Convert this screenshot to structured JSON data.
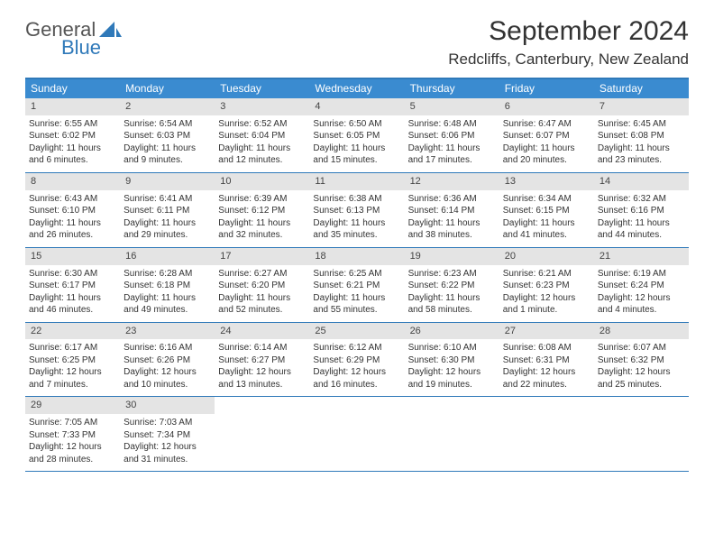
{
  "logo": {
    "text1": "General",
    "text2": "Blue"
  },
  "title": "September 2024",
  "subtitle": "Redcliffs, Canterbury, New Zealand",
  "colors": {
    "header_bg": "#3a8bd0",
    "header_border": "#2f79b9",
    "daynum_bg": "#e4e4e4",
    "text": "#333333",
    "logo_gray": "#555555",
    "logo_blue": "#2f79b9",
    "background": "#ffffff"
  },
  "day_headers": [
    "Sunday",
    "Monday",
    "Tuesday",
    "Wednesday",
    "Thursday",
    "Friday",
    "Saturday"
  ],
  "weeks": [
    [
      {
        "num": "1",
        "sunrise": "Sunrise: 6:55 AM",
        "sunset": "Sunset: 6:02 PM",
        "daylight": "Daylight: 11 hours and 6 minutes."
      },
      {
        "num": "2",
        "sunrise": "Sunrise: 6:54 AM",
        "sunset": "Sunset: 6:03 PM",
        "daylight": "Daylight: 11 hours and 9 minutes."
      },
      {
        "num": "3",
        "sunrise": "Sunrise: 6:52 AM",
        "sunset": "Sunset: 6:04 PM",
        "daylight": "Daylight: 11 hours and 12 minutes."
      },
      {
        "num": "4",
        "sunrise": "Sunrise: 6:50 AM",
        "sunset": "Sunset: 6:05 PM",
        "daylight": "Daylight: 11 hours and 15 minutes."
      },
      {
        "num": "5",
        "sunrise": "Sunrise: 6:48 AM",
        "sunset": "Sunset: 6:06 PM",
        "daylight": "Daylight: 11 hours and 17 minutes."
      },
      {
        "num": "6",
        "sunrise": "Sunrise: 6:47 AM",
        "sunset": "Sunset: 6:07 PM",
        "daylight": "Daylight: 11 hours and 20 minutes."
      },
      {
        "num": "7",
        "sunrise": "Sunrise: 6:45 AM",
        "sunset": "Sunset: 6:08 PM",
        "daylight": "Daylight: 11 hours and 23 minutes."
      }
    ],
    [
      {
        "num": "8",
        "sunrise": "Sunrise: 6:43 AM",
        "sunset": "Sunset: 6:10 PM",
        "daylight": "Daylight: 11 hours and 26 minutes."
      },
      {
        "num": "9",
        "sunrise": "Sunrise: 6:41 AM",
        "sunset": "Sunset: 6:11 PM",
        "daylight": "Daylight: 11 hours and 29 minutes."
      },
      {
        "num": "10",
        "sunrise": "Sunrise: 6:39 AM",
        "sunset": "Sunset: 6:12 PM",
        "daylight": "Daylight: 11 hours and 32 minutes."
      },
      {
        "num": "11",
        "sunrise": "Sunrise: 6:38 AM",
        "sunset": "Sunset: 6:13 PM",
        "daylight": "Daylight: 11 hours and 35 minutes."
      },
      {
        "num": "12",
        "sunrise": "Sunrise: 6:36 AM",
        "sunset": "Sunset: 6:14 PM",
        "daylight": "Daylight: 11 hours and 38 minutes."
      },
      {
        "num": "13",
        "sunrise": "Sunrise: 6:34 AM",
        "sunset": "Sunset: 6:15 PM",
        "daylight": "Daylight: 11 hours and 41 minutes."
      },
      {
        "num": "14",
        "sunrise": "Sunrise: 6:32 AM",
        "sunset": "Sunset: 6:16 PM",
        "daylight": "Daylight: 11 hours and 44 minutes."
      }
    ],
    [
      {
        "num": "15",
        "sunrise": "Sunrise: 6:30 AM",
        "sunset": "Sunset: 6:17 PM",
        "daylight": "Daylight: 11 hours and 46 minutes."
      },
      {
        "num": "16",
        "sunrise": "Sunrise: 6:28 AM",
        "sunset": "Sunset: 6:18 PM",
        "daylight": "Daylight: 11 hours and 49 minutes."
      },
      {
        "num": "17",
        "sunrise": "Sunrise: 6:27 AM",
        "sunset": "Sunset: 6:20 PM",
        "daylight": "Daylight: 11 hours and 52 minutes."
      },
      {
        "num": "18",
        "sunrise": "Sunrise: 6:25 AM",
        "sunset": "Sunset: 6:21 PM",
        "daylight": "Daylight: 11 hours and 55 minutes."
      },
      {
        "num": "19",
        "sunrise": "Sunrise: 6:23 AM",
        "sunset": "Sunset: 6:22 PM",
        "daylight": "Daylight: 11 hours and 58 minutes."
      },
      {
        "num": "20",
        "sunrise": "Sunrise: 6:21 AM",
        "sunset": "Sunset: 6:23 PM",
        "daylight": "Daylight: 12 hours and 1 minute."
      },
      {
        "num": "21",
        "sunrise": "Sunrise: 6:19 AM",
        "sunset": "Sunset: 6:24 PM",
        "daylight": "Daylight: 12 hours and 4 minutes."
      }
    ],
    [
      {
        "num": "22",
        "sunrise": "Sunrise: 6:17 AM",
        "sunset": "Sunset: 6:25 PM",
        "daylight": "Daylight: 12 hours and 7 minutes."
      },
      {
        "num": "23",
        "sunrise": "Sunrise: 6:16 AM",
        "sunset": "Sunset: 6:26 PM",
        "daylight": "Daylight: 12 hours and 10 minutes."
      },
      {
        "num": "24",
        "sunrise": "Sunrise: 6:14 AM",
        "sunset": "Sunset: 6:27 PM",
        "daylight": "Daylight: 12 hours and 13 minutes."
      },
      {
        "num": "25",
        "sunrise": "Sunrise: 6:12 AM",
        "sunset": "Sunset: 6:29 PM",
        "daylight": "Daylight: 12 hours and 16 minutes."
      },
      {
        "num": "26",
        "sunrise": "Sunrise: 6:10 AM",
        "sunset": "Sunset: 6:30 PM",
        "daylight": "Daylight: 12 hours and 19 minutes."
      },
      {
        "num": "27",
        "sunrise": "Sunrise: 6:08 AM",
        "sunset": "Sunset: 6:31 PM",
        "daylight": "Daylight: 12 hours and 22 minutes."
      },
      {
        "num": "28",
        "sunrise": "Sunrise: 6:07 AM",
        "sunset": "Sunset: 6:32 PM",
        "daylight": "Daylight: 12 hours and 25 minutes."
      }
    ],
    [
      {
        "num": "29",
        "sunrise": "Sunrise: 7:05 AM",
        "sunset": "Sunset: 7:33 PM",
        "daylight": "Daylight: 12 hours and 28 minutes."
      },
      {
        "num": "30",
        "sunrise": "Sunrise: 7:03 AM",
        "sunset": "Sunset: 7:34 PM",
        "daylight": "Daylight: 12 hours and 31 minutes."
      },
      {
        "empty": true
      },
      {
        "empty": true
      },
      {
        "empty": true
      },
      {
        "empty": true
      },
      {
        "empty": true
      }
    ]
  ]
}
